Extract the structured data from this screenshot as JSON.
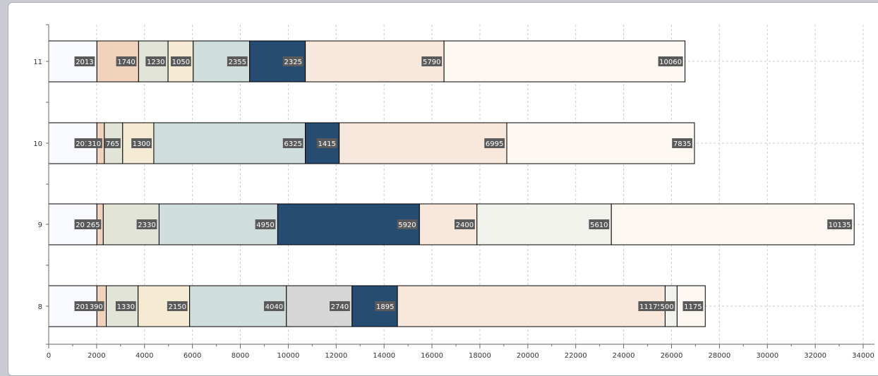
{
  "chart_data": {
    "type": "bar",
    "orientation": "horizontal",
    "stacked": true,
    "categories": [
      "11",
      "10",
      "9",
      "8"
    ],
    "rows": [
      {
        "category": "11",
        "values": [
          2013,
          1740,
          1230,
          1050,
          2355,
          2325,
          5790,
          10060
        ],
        "colors": [
          "#f8faff",
          "#f1d3bd",
          "#e2e4d8",
          "#f5ead4",
          "#cfdddd",
          "#274c72",
          "#f8e7db",
          "#fcf8f1"
        ]
      },
      {
        "category": "10",
        "values": [
          2013,
          310,
          765,
          1300,
          6325,
          1415,
          6995,
          7835
        ],
        "colors": [
          "#f8faff",
          "#f1d3bd",
          "#e2e4d8",
          "#f5ead4",
          "#cfdddd",
          "#274c72",
          "#f8e7db",
          "#fcf8f1"
        ]
      },
      {
        "category": "9",
        "values": [
          2013,
          265,
          2330,
          4950,
          5920,
          2400,
          5610,
          10135
        ],
        "colors": [
          "#f8faff",
          "#f1d3bd",
          "#e2e4d8",
          "#cfdddd",
          "#274c72",
          "#f8e7db",
          "#f1f2ec",
          "#fcf8f1"
        ]
      },
      {
        "category": "8",
        "values": [
          2013,
          390,
          1330,
          2150,
          4040,
          2740,
          1895,
          11175,
          500,
          1175
        ],
        "colors": [
          "#f8faff",
          "#f1d3bd",
          "#e2e4d8",
          "#f5ead4",
          "#cfdddd",
          "#d6d6d6",
          "#274c72",
          "#f8e7db",
          "#f1f2ec",
          "#fcf8f1"
        ]
      }
    ],
    "x_ticks": [
      "0",
      "2000",
      "4000",
      "6000",
      "8000",
      "10000",
      "12000",
      "14000",
      "16000",
      "18000",
      "20000",
      "22000",
      "24000",
      "26000",
      "28000",
      "30000",
      "32000",
      "34000"
    ],
    "xlim": [
      0,
      34000
    ],
    "xlabel": "",
    "ylabel": "",
    "title": "",
    "grid": true,
    "legend": "none"
  }
}
